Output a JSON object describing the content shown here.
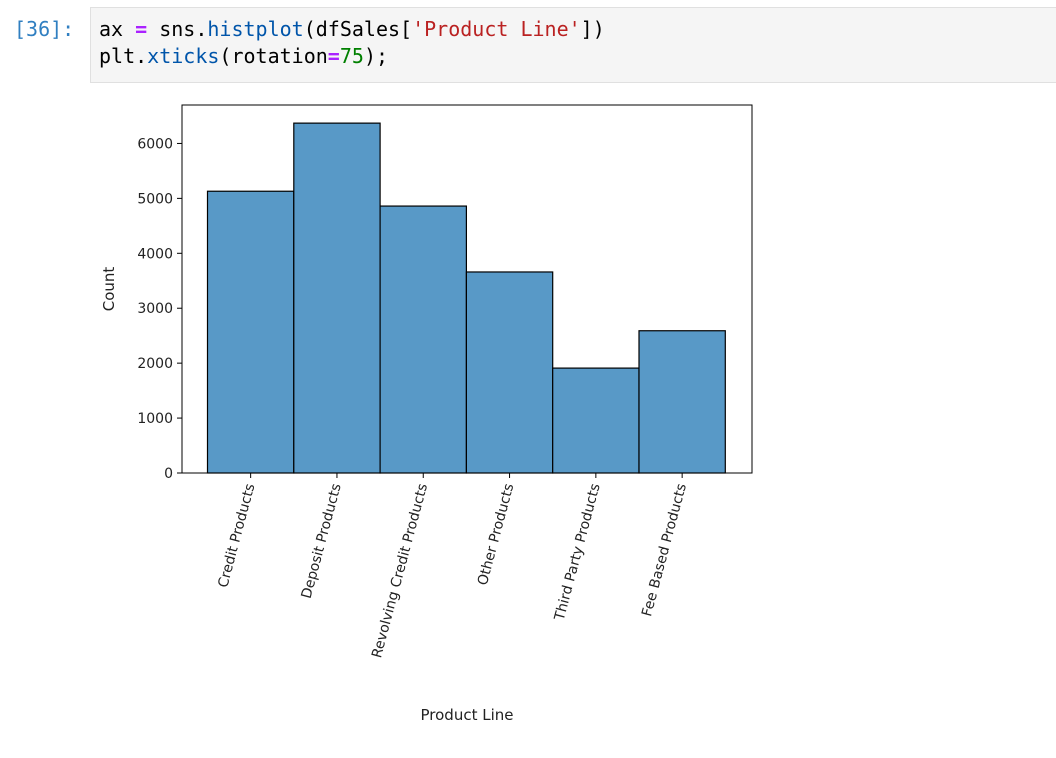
{
  "cell": {
    "prompt": "[36]:",
    "code_lines": [
      [
        {
          "t": "ax ",
          "c": ""
        },
        {
          "t": "=",
          "c": "op"
        },
        {
          "t": " sns.",
          "c": ""
        },
        {
          "t": "histplot",
          "c": "fn"
        },
        {
          "t": "(dfSales[",
          "c": ""
        },
        {
          "t": "'Product Line'",
          "c": "str"
        },
        {
          "t": "])",
          "c": ""
        }
      ],
      [
        {
          "t": "plt.",
          "c": ""
        },
        {
          "t": "xticks",
          "c": "fn"
        },
        {
          "t": "(rotation",
          "c": ""
        },
        {
          "t": "=",
          "c": "op"
        },
        {
          "t": "75",
          "c": "num"
        },
        {
          "t": ");",
          "c": ""
        }
      ]
    ]
  },
  "chart_data": {
    "type": "bar",
    "categories": [
      "Credit Products",
      "Deposit Products",
      "Revolving Credit Products",
      "Other Products",
      "Third Party Products",
      "Fee Based Products"
    ],
    "values": [
      5130,
      6370,
      4860,
      3660,
      1910,
      2590
    ],
    "title": "",
    "xlabel": "Product Line",
    "ylabel": "Count",
    "ylim": [
      0,
      6700
    ],
    "yticks": [
      0,
      1000,
      2000,
      3000,
      4000,
      5000,
      6000
    ],
    "xtick_rotation_deg": 75,
    "grid": false,
    "colors": {
      "bar_fill": "#5899c7",
      "bar_edge": "#000000",
      "axis": "#000000"
    }
  }
}
